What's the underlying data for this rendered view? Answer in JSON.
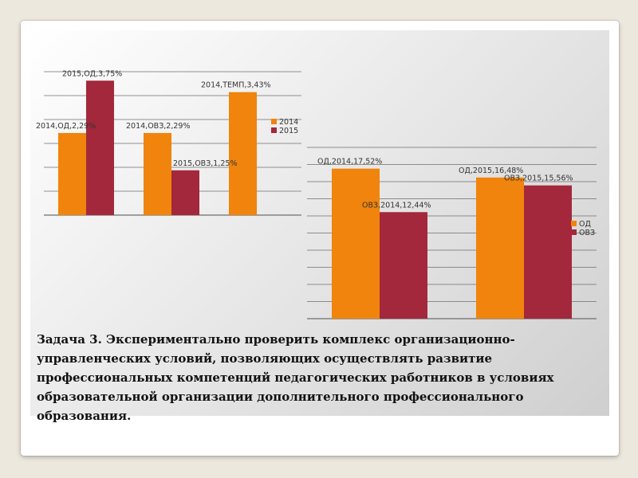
{
  "colors": {
    "orange": "#f0840c",
    "red": "#a3283c",
    "grid": "#6e6e6e"
  },
  "chart_data": [
    {
      "type": "bar",
      "categories": [
        "ОД",
        "ОВЗ",
        "ТЕМП"
      ],
      "series": [
        {
          "name": "2014",
          "values": [
            2.29,
            2.29,
            3.43
          ]
        },
        {
          "name": "2015",
          "values": [
            3.75,
            1.25,
            null
          ]
        }
      ],
      "data_labels": [
        [
          "2014,ОД,2,29%",
          "2014,ОВЗ,2,29%",
          "2014,ТЕМП,3,43%"
        ],
        [
          "2015,ОД,3,75%",
          "2015,ОВЗ,1,25%",
          ""
        ]
      ],
      "legend": [
        "2014",
        "2015"
      ],
      "legend_position": "right",
      "ylim": [
        0,
        4
      ],
      "grid": true
    },
    {
      "type": "bar",
      "categories": [
        "2014",
        "2015"
      ],
      "series": [
        {
          "name": "ОД",
          "values": [
            17.52,
            16.48
          ]
        },
        {
          "name": "ОВЗ",
          "values": [
            12.44,
            15.56
          ]
        }
      ],
      "data_labels": [
        [
          "ОД,2014,17,52%",
          "ОД,2015,16,48%"
        ],
        [
          "ОВЗ,2014,12,44%",
          "ОВЗ,2015,15,56%"
        ]
      ],
      "legend": [
        "ОД",
        "ОВЗ"
      ],
      "legend_position": "right",
      "ylim": [
        0,
        20
      ],
      "grid": true
    }
  ],
  "task_text": "Задача 3. Экспериментально проверить комплекс организационно-управленческих условий, позволяющих осуществлять развитие профессиональных компетенций педагогических работников в условиях образовательной организации дополнительного профессионального образования."
}
